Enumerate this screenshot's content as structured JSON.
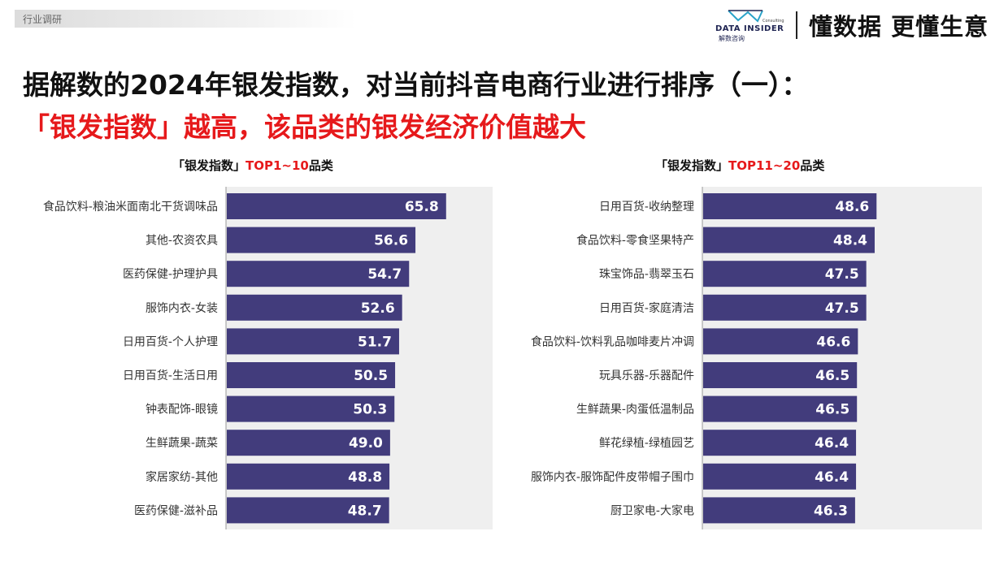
{
  "header": {
    "section_label": "行业调研",
    "logo_brand": "DATA INSIDER",
    "logo_sub": "解数咨询",
    "logo_tiny": "Consulting",
    "slogan": "懂数据 更懂生意"
  },
  "title": {
    "line1": "据解数的2024年银发指数，对当前抖音电商行业进行排序（一）：",
    "line2": "「银发指数」越高，该品类的银发经济价值越大"
  },
  "panels": [
    {
      "title_black": "「银发指数」",
      "title_red": "TOP1~10",
      "title_suffix": "品类"
    },
    {
      "title_black": "「银发指数」",
      "title_red": "TOP11~20",
      "title_suffix": "品类"
    }
  ],
  "colors": {
    "bar": "#423c7c",
    "bar_label": "#ffffff",
    "plot_bg": "#efefef",
    "accent_red": "#e6191b"
  },
  "chart_data": [
    {
      "type": "bar",
      "orientation": "horizontal",
      "categories": [
        "食品饮料-粮油米面南北干货调味品",
        "其他-农资农具",
        "医药保健-护理护具",
        "服饰内衣-女装",
        "日用百货-个人护理",
        "日用百货-生活日用",
        "钟表配饰-眼镜",
        "生鲜蔬果-蔬菜",
        "家居家纺-其他",
        "医药保健-滋补品"
      ],
      "values": [
        65.8,
        56.6,
        54.7,
        52.6,
        51.7,
        50.5,
        50.3,
        49.0,
        48.8,
        48.7
      ],
      "value_labels": [
        "65.8",
        "56.6",
        "54.7",
        "52.6",
        "51.7",
        "50.5",
        "50.3",
        "49.0",
        "48.8",
        "48.7"
      ],
      "xlim": [
        0,
        80
      ]
    },
    {
      "type": "bar",
      "orientation": "horizontal",
      "categories": [
        "日用百货-收纳整理",
        "食品饮料-零食坚果特产",
        "珠宝饰品-翡翠玉石",
        "日用百货-家庭清洁",
        "食品饮料-饮料乳品咖啡麦片冲调",
        "玩具乐器-乐器配件",
        "生鲜蔬果-肉蛋低温制品",
        "鲜花绿植-绿植园艺",
        "服饰内衣-服饰配件皮带帽子围巾",
        "厨卫家电-大家电"
      ],
      "values": [
        48.6,
        48.4,
        47.5,
        47.5,
        46.6,
        46.5,
        46.5,
        46.4,
        46.4,
        46.3
      ],
      "value_labels": [
        "48.6",
        "48.4",
        "47.5",
        "47.5",
        "46.6",
        "46.5",
        "46.5",
        "46.4",
        "46.4",
        "46.3"
      ],
      "xlim": [
        30,
        60
      ]
    }
  ]
}
